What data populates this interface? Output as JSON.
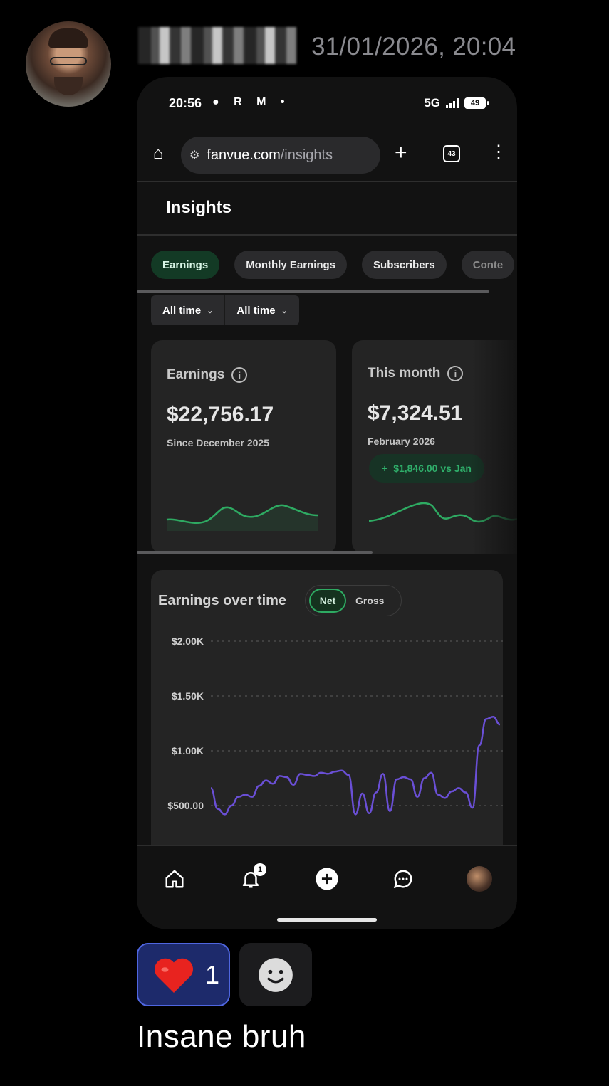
{
  "message": {
    "timestamp": "31/01/2026, 20:04",
    "text": "Insane bruh",
    "reactions": [
      {
        "emoji": "❤️",
        "count": "1"
      }
    ]
  },
  "phone": {
    "status_bar": {
      "time": "20:56",
      "network": "5G",
      "battery": "49"
    },
    "browser": {
      "url_domain": "fanvue.com",
      "url_path": "/insights",
      "tab_count": "43"
    },
    "page": {
      "title": "Insights",
      "tabs": [
        {
          "label": "Earnings",
          "active": true
        },
        {
          "label": "Monthly Earnings",
          "active": false
        },
        {
          "label": "Subscribers",
          "active": false
        },
        {
          "label": "Conte",
          "active": false
        }
      ],
      "filters": [
        {
          "label": "All time"
        },
        {
          "label": "All time"
        }
      ],
      "cards": [
        {
          "title": "Earnings",
          "value": "$22,756.17",
          "subtitle": "Since December 2025"
        },
        {
          "title": "This month",
          "value": "$7,324.51",
          "subtitle": "February 2026",
          "delta": "$1,846.00 vs Jan"
        }
      ],
      "chart": {
        "title": "Earnings over time",
        "toggle": {
          "active": "Net",
          "inactive": "Gross"
        }
      }
    },
    "bottom_nav": {
      "notification_count": "1"
    }
  },
  "colors": {
    "accent_green": "#2eaa62",
    "chart_line": "#6a4fd6",
    "reaction_border": "#4f66e0"
  },
  "chart_data": {
    "type": "line",
    "title": "Earnings over time",
    "y_ticks": [
      "$2.00K",
      "$1.50K",
      "$1.00K",
      "$500.00"
    ],
    "ylim": [
      0,
      2000
    ],
    "grid": true,
    "series": [
      {
        "values": [
          660,
          470,
          420,
          500,
          580,
          600,
          580,
          680,
          730,
          700,
          770,
          760,
          690,
          790,
          780,
          770,
          800,
          790,
          810,
          820,
          780,
          420,
          610,
          430,
          620,
          790,
          450,
          740,
          760,
          740,
          580,
          750,
          800,
          600,
          570,
          630,
          660,
          620,
          480,
          1050,
          1290,
          1310,
          1240
        ]
      }
    ]
  }
}
